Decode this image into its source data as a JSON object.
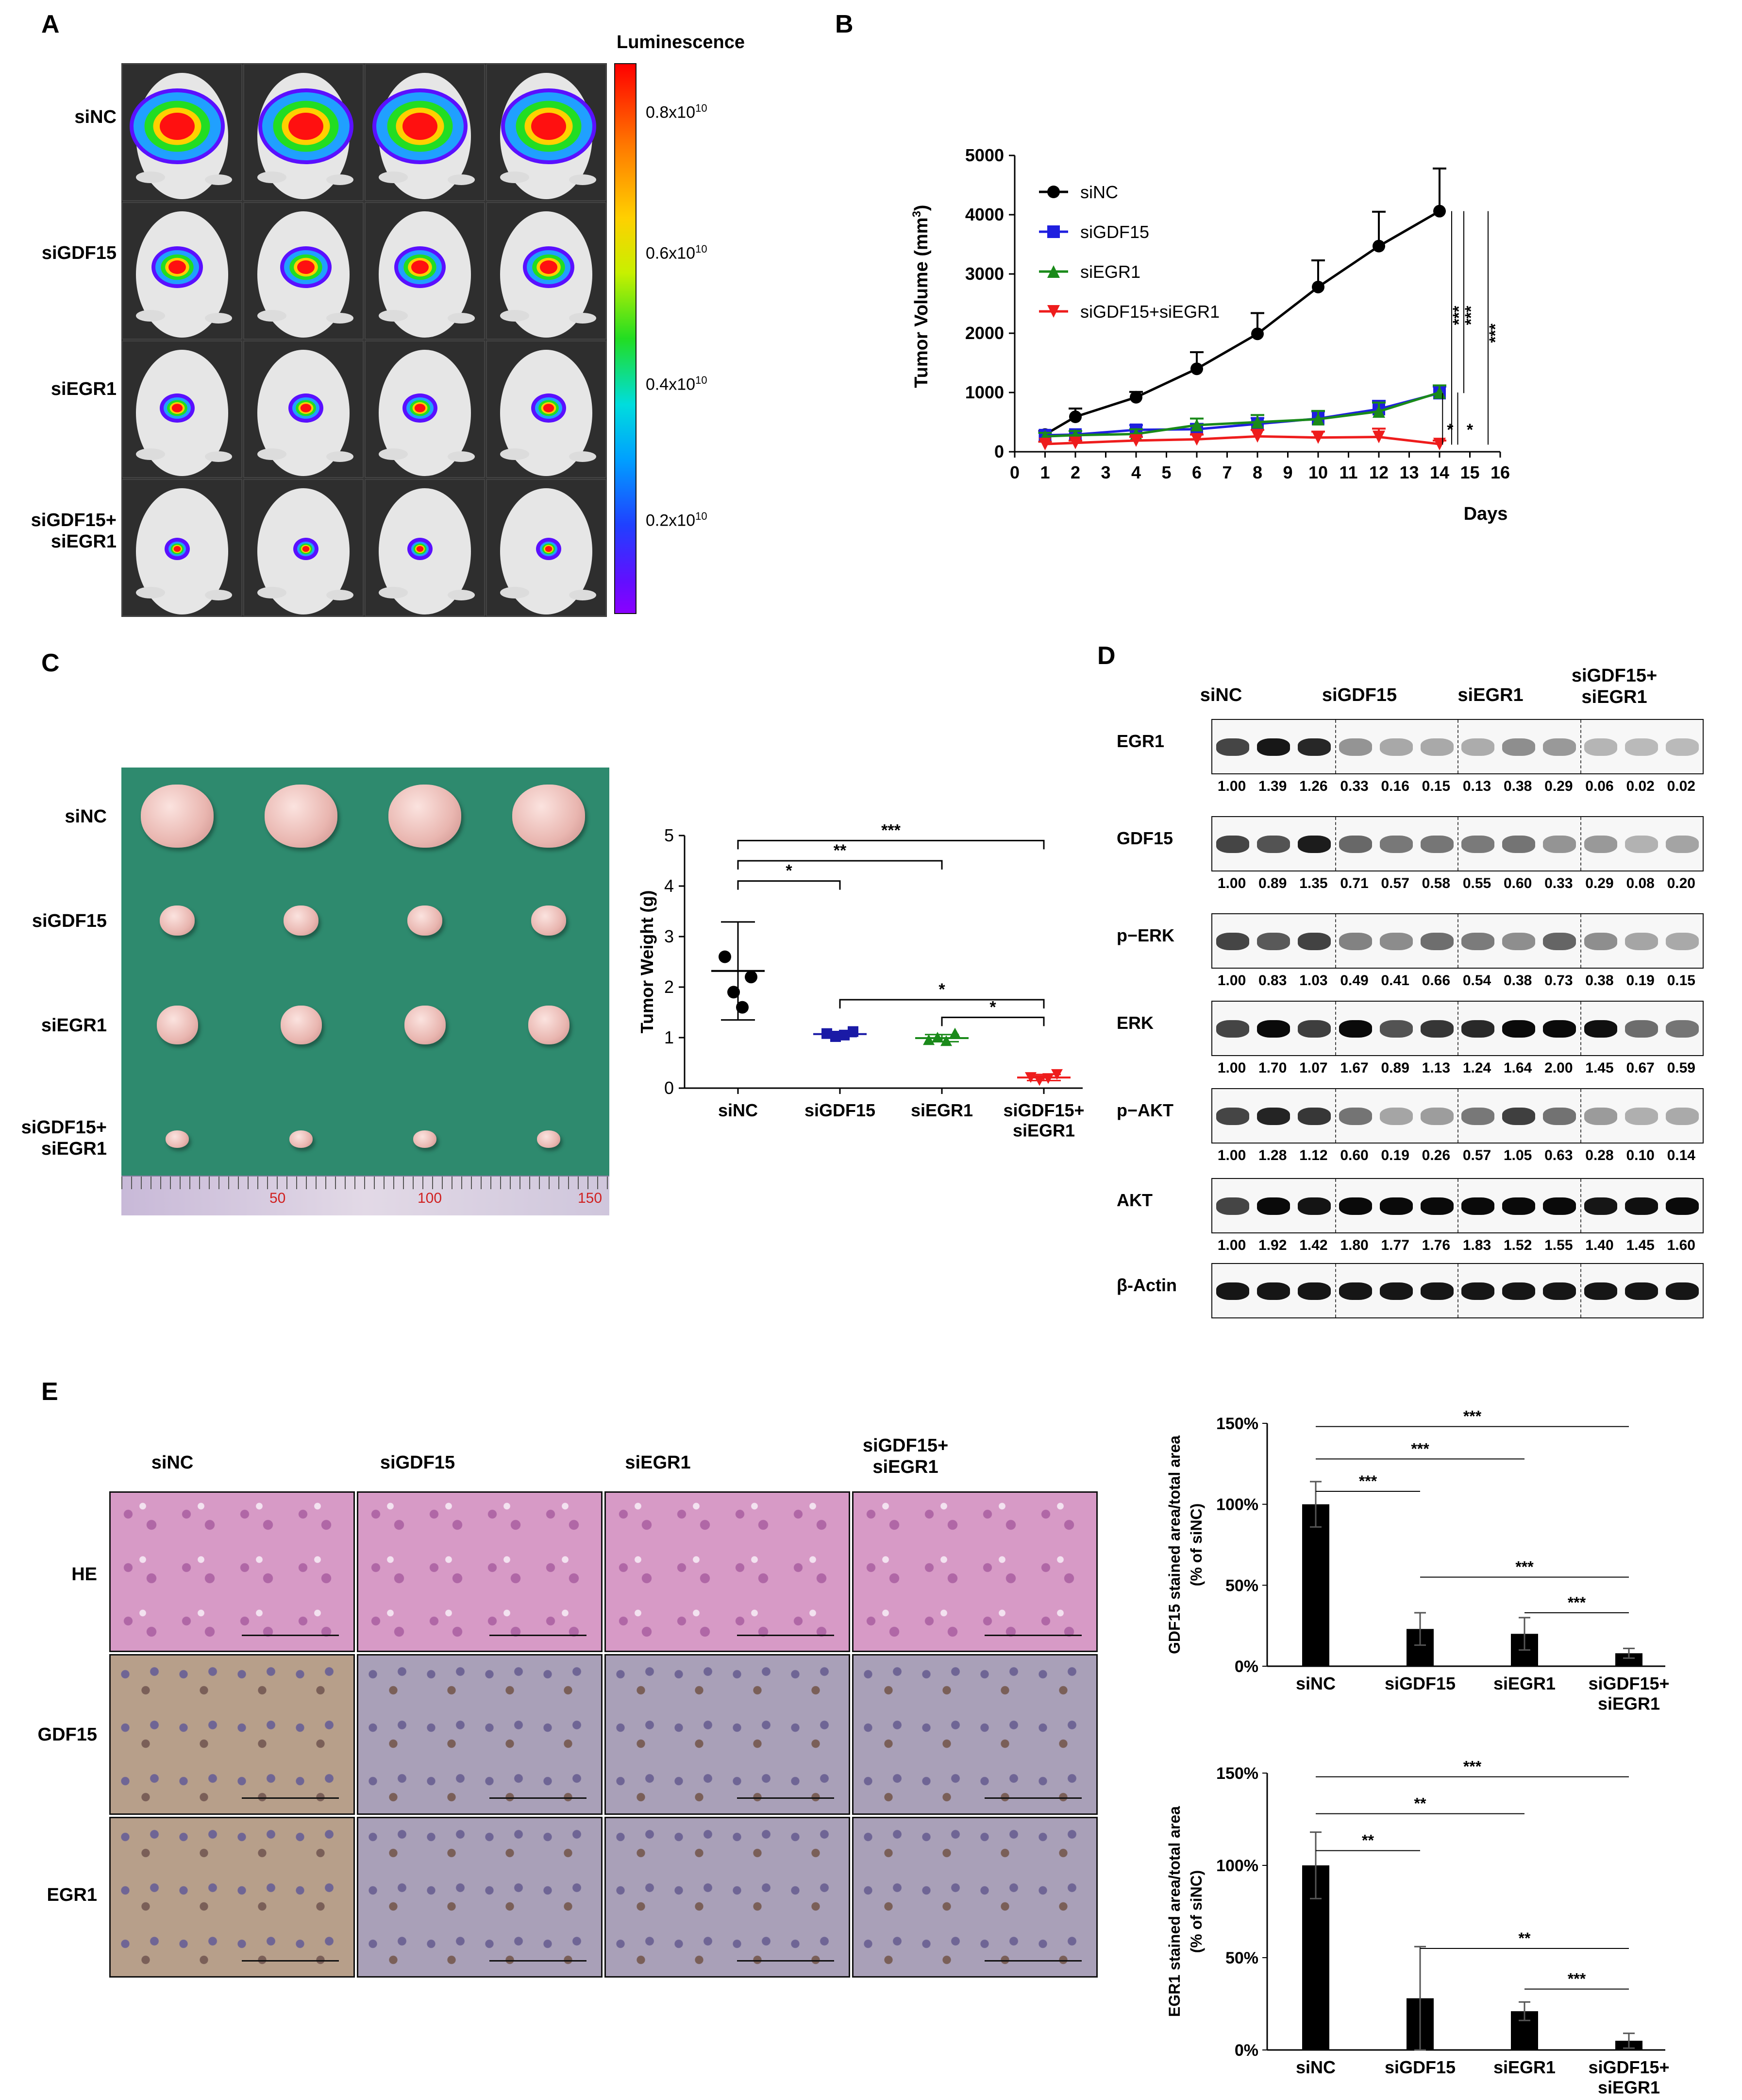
{
  "panelA": {
    "label": "A",
    "rows": [
      "siNC",
      "siGDF15",
      "siEGR1",
      "siGDF15+\nsiEGR1"
    ],
    "colorbar_title": "Luminescence",
    "colorbar_ticks": [
      "0.8x10",
      "0.6x10",
      "0.4x10",
      "0.2x10"
    ],
    "colorbar_exp": "10",
    "colors": {
      "bg": "#333333",
      "mouse": "#e8e8e8"
    }
  },
  "panelB": {
    "label": "B",
    "chart_data": {
      "type": "line",
      "xlabel": "Days",
      "ylabel": "Tumor Volume (mm",
      "ylabel_sup": "3",
      "ylabel_close": ")",
      "x": [
        1,
        2,
        4,
        6,
        8,
        10,
        12,
        14
      ],
      "xticks": [
        "0",
        "1",
        "2",
        "3",
        "4",
        "5",
        "6",
        "7",
        "8",
        "9",
        "10",
        "11",
        "12",
        "13",
        "14",
        "15",
        "16"
      ],
      "yticks": [
        "0",
        "1000",
        "2000",
        "3000",
        "4000",
        "5000"
      ],
      "xlim": [
        0,
        16
      ],
      "ylim": [
        0,
        5000
      ],
      "series": [
        {
          "name": "siNC",
          "color": "#000000",
          "marker": "circle",
          "values": [
            290,
            590,
            920,
            1400,
            1990,
            2780,
            3470,
            4060
          ],
          "err": [
            60,
            140,
            90,
            280,
            350,
            450,
            580,
            720
          ]
        },
        {
          "name": "siGDF15",
          "color": "#1f1fdf",
          "marker": "square",
          "values": [
            280,
            290,
            370,
            380,
            470,
            560,
            720,
            990
          ],
          "err": [
            50,
            60,
            80,
            90,
            100,
            120,
            140,
            110
          ]
        },
        {
          "name": "siEGR1",
          "color": "#1a8a1a",
          "marker": "triangle",
          "values": [
            260,
            280,
            300,
            450,
            500,
            550,
            680,
            1000
          ],
          "err": [
            60,
            70,
            80,
            110,
            120,
            140,
            150,
            120
          ]
        },
        {
          "name": "siGDF15+siEGR1",
          "color": "#ee1c1c",
          "marker": "triangle-down",
          "values": [
            130,
            150,
            190,
            210,
            260,
            240,
            250,
            130
          ],
          "err": [
            40,
            40,
            60,
            80,
            110,
            100,
            140,
            60
          ]
        }
      ],
      "sig": [
        "***",
        "***",
        "***",
        "*",
        "*"
      ]
    }
  },
  "panelC": {
    "label": "C",
    "rows": [
      "siNC",
      "siGDF15",
      "siEGR1",
      "siGDF15+\nsiEGR1"
    ],
    "ruler_numbers": [
      "50",
      "100",
      "150"
    ],
    "colors": {
      "cloth": "#2e8a6e",
      "tumor": "#efc7c2"
    },
    "chart_data": {
      "type": "scatter",
      "ylabel": "Tumor Weight (g)",
      "categories": [
        "siNC",
        "siGDF15",
        "siEGR1",
        "siGDF15+\nsiEGR1"
      ],
      "yticks": [
        "0",
        "1",
        "2",
        "3",
        "4",
        "5"
      ],
      "ylim": [
        0,
        5
      ],
      "points": [
        [
          2.6,
          1.9,
          1.6,
          2.2
        ],
        [
          1.08,
          1.02,
          1.05,
          1.12
        ],
        [
          0.95,
          1.0,
          0.93,
          1.08
        ],
        [
          0.22,
          0.16,
          0.2,
          0.28
        ]
      ],
      "means": [
        2.32,
        1.07,
        0.99,
        0.21
      ],
      "sd": [
        0.97,
        0.05,
        0.07,
        0.06
      ],
      "colors": [
        "#000000",
        "#1a1aa6",
        "#1a8a1a",
        "#ee1c1c"
      ],
      "sig": [
        "***",
        "**",
        "*",
        "*",
        "*"
      ]
    }
  },
  "panelD": {
    "label": "D",
    "groups": [
      "siNC",
      "siGDF15",
      "siEGR1",
      "siGDF15+\nsiEGR1"
    ],
    "blots": [
      {
        "name": "EGR1",
        "quant": [
          "1.00",
          "1.39",
          "1.26",
          "0.33",
          "0.16",
          "0.15",
          "0.13",
          "0.38",
          "0.29",
          "0.06",
          "0.02",
          "0.02"
        ]
      },
      {
        "name": "GDF15",
        "quant": [
          "1.00",
          "0.89",
          "1.35",
          "0.71",
          "0.57",
          "0.58",
          "0.55",
          "0.60",
          "0.33",
          "0.29",
          "0.08",
          "0.20"
        ]
      },
      {
        "name": "p−ERK",
        "quant": [
          "1.00",
          "0.83",
          "1.03",
          "0.49",
          "0.41",
          "0.66",
          "0.54",
          "0.38",
          "0.73",
          "0.38",
          "0.19",
          "0.15"
        ]
      },
      {
        "name": "ERK",
        "quant": [
          "1.00",
          "1.70",
          "1.07",
          "1.67",
          "0.89",
          "1.13",
          "1.24",
          "1.64",
          "2.00",
          "1.45",
          "0.67",
          "0.59"
        ]
      },
      {
        "name": "p−AKT",
        "quant": [
          "1.00",
          "1.28",
          "1.12",
          "0.60",
          "0.19",
          "0.26",
          "0.57",
          "1.05",
          "0.63",
          "0.28",
          "0.10",
          "0.14"
        ]
      },
      {
        "name": "AKT",
        "quant": [
          "1.00",
          "1.92",
          "1.42",
          "1.80",
          "1.77",
          "1.76",
          "1.83",
          "1.52",
          "1.55",
          "1.40",
          "1.45",
          "1.60"
        ]
      },
      {
        "name": "β-Actin",
        "quant": []
      }
    ]
  },
  "panelE": {
    "label": "E",
    "cols": [
      "siNC",
      "siGDF15",
      "siEGR1",
      "siGDF15+\nsiEGR1"
    ],
    "rows": [
      "HE",
      "GDF15",
      "EGR1"
    ],
    "colors": {
      "he": "#d79ac6",
      "ihc": "#a9a0b8"
    },
    "chart_data": [
      {
        "type": "bar",
        "ylabel": "GDF15 stained area/total area",
        "ylabel2": "(% of siNC)",
        "categories": [
          "siNC",
          "siGDF15",
          "siEGR1",
          "siGDF15+\nsiEGR1"
        ],
        "values": [
          100,
          23,
          20,
          8
        ],
        "err": [
          14,
          10,
          10,
          3
        ],
        "yticks": [
          "0%",
          "50%",
          "100%",
          "150%"
        ],
        "ylim": [
          0,
          150
        ],
        "sig": [
          "***",
          "***",
          "***",
          "***",
          "***"
        ]
      },
      {
        "type": "bar",
        "ylabel": "EGR1 stained area/total area",
        "ylabel2": "(% of siNC)",
        "categories": [
          "siNC",
          "siGDF15",
          "siEGR1",
          "siGDF15+\nsiEGR1"
        ],
        "values": [
          100,
          28,
          21,
          5
        ],
        "err": [
          18,
          28,
          5,
          4
        ],
        "yticks": [
          "0%",
          "50%",
          "100%",
          "150%"
        ],
        "ylim": [
          0,
          150
        ],
        "sig": [
          "**",
          "**",
          "***",
          "**",
          "***"
        ]
      }
    ]
  }
}
